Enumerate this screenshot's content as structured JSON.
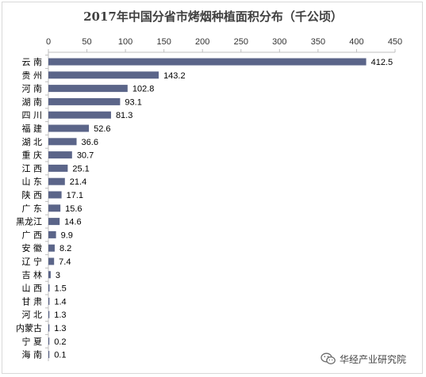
{
  "chart_data": {
    "type": "bar",
    "orientation": "horizontal",
    "title": "2017年中国分省市烤烟种植面积分布（千公顷）",
    "categories": [
      "云 南",
      "贵 州",
      "河 南",
      "湖 南",
      "四 川",
      "福 建",
      "湖 北",
      "重 庆",
      "江 西",
      "山 东",
      "陕 西",
      "广 东",
      "黑龙江",
      "广 西",
      "安 徽",
      "辽 宁",
      "吉 林",
      "山 西",
      "甘 肃",
      "河 北",
      "内蒙古",
      "宁 夏",
      "海 南"
    ],
    "values": [
      412.5,
      143.2,
      102.8,
      93.1,
      81.3,
      52.6,
      36.6,
      30.7,
      25.1,
      21.4,
      17.1,
      15.6,
      14.6,
      9.9,
      8.2,
      7.4,
      3,
      1.5,
      1.4,
      1.3,
      1.3,
      0.2,
      0.1
    ],
    "value_labels": [
      "412.5",
      "143.2",
      "102.8",
      "93.1",
      "81.3",
      "52.6",
      "36.6",
      "30.7",
      "25.1",
      "21.4",
      "17.1",
      "15.6",
      "14.6",
      "9.9",
      "8.2",
      "7.4",
      "3",
      "1.5",
      "1.4",
      "1.3",
      "1.3",
      "0.2",
      "0.1"
    ],
    "xlim": [
      0,
      450
    ],
    "xticks": [
      0,
      50,
      100,
      150,
      200,
      250,
      300,
      350,
      400,
      450
    ],
    "xtick_labels": [
      "0",
      "50",
      "100",
      "150",
      "200",
      "250",
      "300",
      "350",
      "400",
      "450"
    ],
    "x_axis_position": "top",
    "grid": false,
    "bar_color": "#5b6589"
  },
  "watermark": {
    "text": "华经产业研究院",
    "icon": "wechat-icon"
  }
}
